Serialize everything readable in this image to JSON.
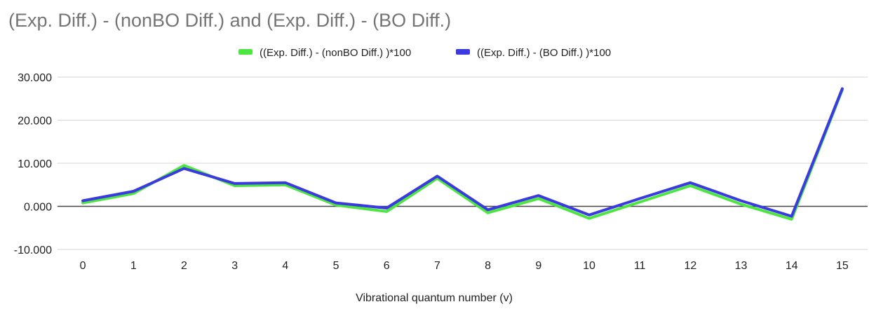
{
  "chart_data": {
    "type": "line",
    "title": "(Exp. Diff.) - (nonBO Diff.) and (Exp. Diff.) - (BO Diff.)",
    "xlabel": "Vibrational quantum number (v)",
    "ylabel": "",
    "x": [
      "0",
      "1",
      "2",
      "3",
      "4",
      "5",
      "6",
      "7",
      "8",
      "9",
      "10",
      "11",
      "12",
      "13",
      "14",
      "15"
    ],
    "ylim": [
      -10,
      30
    ],
    "yticks": [
      "-10.000",
      "0.000",
      "10.000",
      "20.000",
      "30.000"
    ],
    "ytick_values": [
      -10,
      0,
      10,
      20,
      30
    ],
    "grid": true,
    "legend": "top",
    "series": [
      {
        "name": "((Exp. Diff.) - (nonBO Diff.) )*100",
        "color": "#4de640",
        "values": [
          0.8,
          3.0,
          9.5,
          4.8,
          5.0,
          0.3,
          -1.2,
          6.5,
          -1.5,
          1.8,
          -2.8,
          1.0,
          4.8,
          0.5,
          -3.0,
          27.0
        ]
      },
      {
        "name": "((Exp. Diff.) - (BO Diff.) )*100",
        "color": "#3a3ae0",
        "values": [
          1.3,
          3.5,
          8.8,
          5.3,
          5.5,
          0.8,
          -0.4,
          7.0,
          -0.8,
          2.5,
          -2.0,
          1.8,
          5.5,
          1.3,
          -2.3,
          27.3
        ]
      }
    ]
  }
}
